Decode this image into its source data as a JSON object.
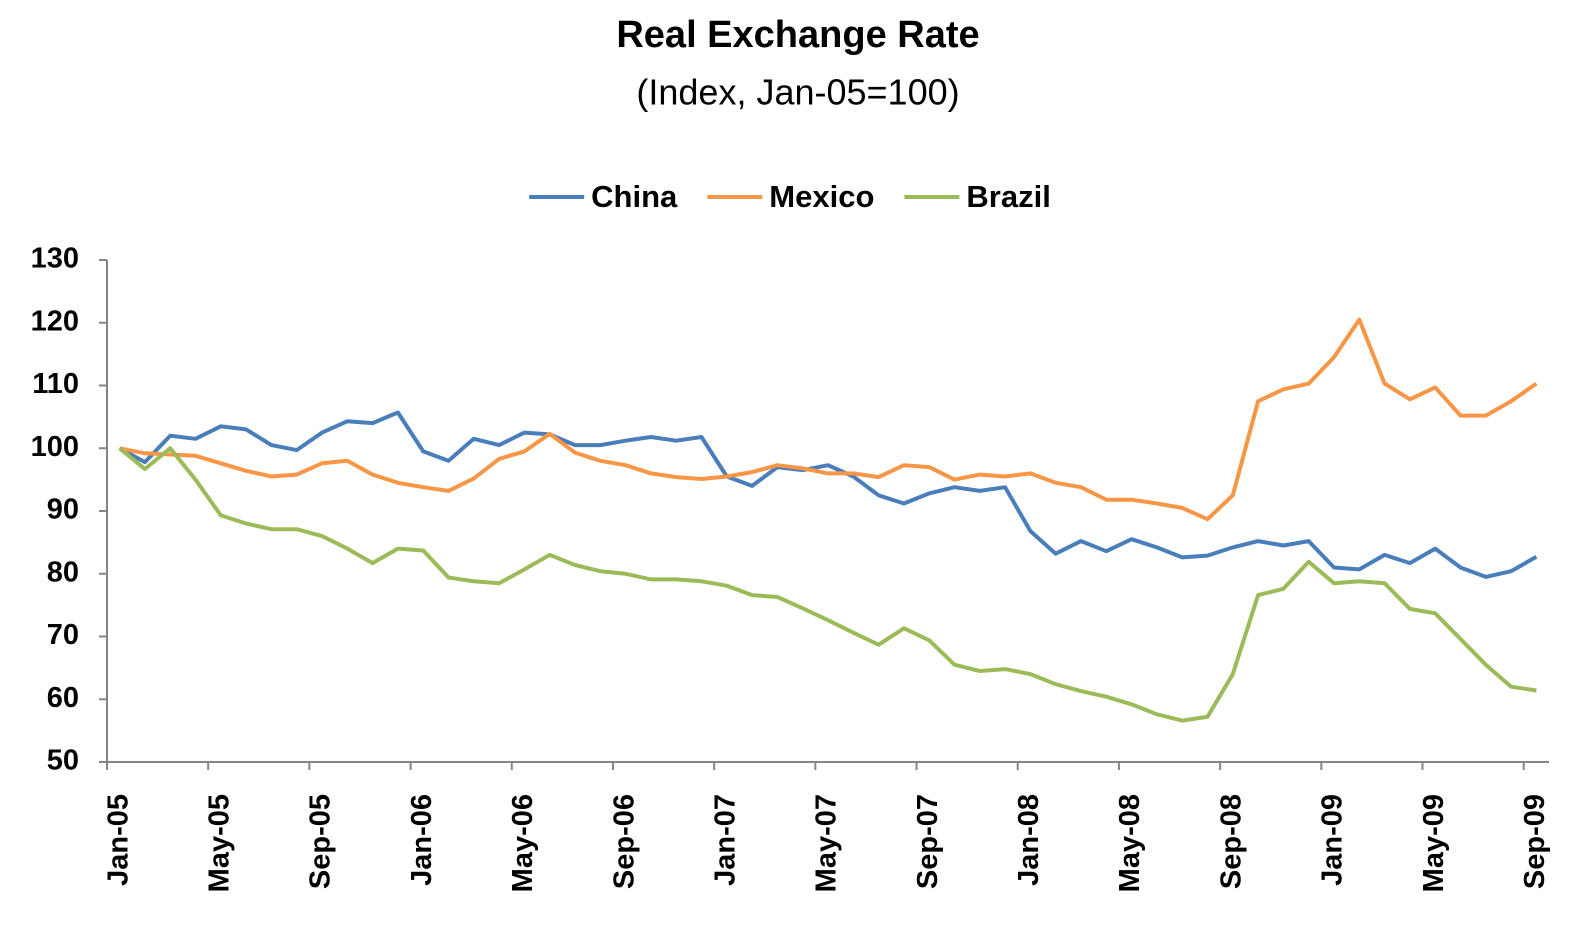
{
  "chart_data": {
    "type": "line",
    "title": "Real Exchange Rate",
    "subtitle": "(Index, Jan-05=100)",
    "categories": [
      "Jan-05",
      null,
      null,
      null,
      "May-05",
      null,
      null,
      null,
      "Sep-05",
      null,
      null,
      null,
      "Jan-06",
      null,
      null,
      null,
      "May-06",
      null,
      null,
      null,
      "Sep-06",
      null,
      null,
      null,
      "Jan-07",
      null,
      null,
      null,
      "May-07",
      null,
      null,
      null,
      "Sep-07",
      null,
      null,
      null,
      "Jan-08",
      null,
      null,
      null,
      "May-08",
      null,
      null,
      null,
      "Sep-08",
      null,
      null,
      null,
      "Jan-09",
      null,
      null,
      null,
      "May-09",
      null,
      null,
      null,
      "Sep-09"
    ],
    "series": [
      {
        "name": "China",
        "color": "#4a7ebb",
        "values": [
          100,
          97.8,
          102,
          101.5,
          103.5,
          103,
          100.5,
          99.7,
          102.5,
          104.3,
          104,
          105.7,
          99.5,
          98,
          101.5,
          100.5,
          102.5,
          102.2,
          100.5,
          100.5,
          101.2,
          101.8,
          101.2,
          101.8,
          95.5,
          94,
          97,
          96.5,
          97.3,
          95.5,
          92.5,
          91.2,
          92.8,
          93.8,
          93.2,
          93.8,
          86.8,
          83.2,
          85.2,
          83.6,
          85.5,
          84.2,
          82.6,
          82.9,
          84.2,
          85.2,
          84.5,
          85.2,
          81,
          80.7,
          83,
          81.7,
          84,
          81,
          79.5,
          80.4,
          82.7
        ]
      },
      {
        "name": "Mexico",
        "color": "#f79646",
        "values": [
          100,
          99.2,
          99,
          98.8,
          97.6,
          96.4,
          95.5,
          95.8,
          97.6,
          98,
          95.8,
          94.5,
          93.8,
          93.2,
          95.2,
          98.3,
          99.5,
          102.3,
          99.3,
          98,
          97.3,
          96,
          95.4,
          95.1,
          95.5,
          96.2,
          97.3,
          96.8,
          96,
          96,
          95.4,
          97.3,
          97,
          95,
          95.8,
          95.5,
          96,
          94.5,
          93.8,
          91.8,
          91.8,
          91.2,
          90.5,
          88.7,
          92.5,
          107.5,
          109.4,
          110.3,
          114.5,
          120.5,
          110.3,
          107.8,
          109.7,
          105.2,
          105.2,
          107.5,
          110.3
        ]
      },
      {
        "name": "Brazil",
        "color": "#9bbb59",
        "values": [
          100,
          96.7,
          100,
          95,
          89.3,
          88,
          87.1,
          87.1,
          86,
          84,
          81.7,
          84,
          83.7,
          79.4,
          78.8,
          78.5,
          80.7,
          83,
          81.4,
          80.4,
          80,
          79.1,
          79.1,
          78.8,
          78.1,
          76.6,
          76.3,
          74.5,
          72.6,
          70.6,
          68.7,
          71.3,
          69.4,
          65.5,
          64.5,
          64.8,
          64,
          62.4,
          61.3,
          60.4,
          59.2,
          57.6,
          56.6,
          57.2,
          64,
          76.6,
          77.6,
          81.9,
          78.5,
          78.8,
          78.5,
          74.4,
          73.7,
          69.6,
          65.5,
          62,
          61.4
        ]
      }
    ],
    "ylim": [
      50,
      130
    ],
    "yticks": [
      50,
      60,
      70,
      80,
      90,
      100,
      110,
      120,
      130
    ],
    "grid": false,
    "legend": "top"
  }
}
